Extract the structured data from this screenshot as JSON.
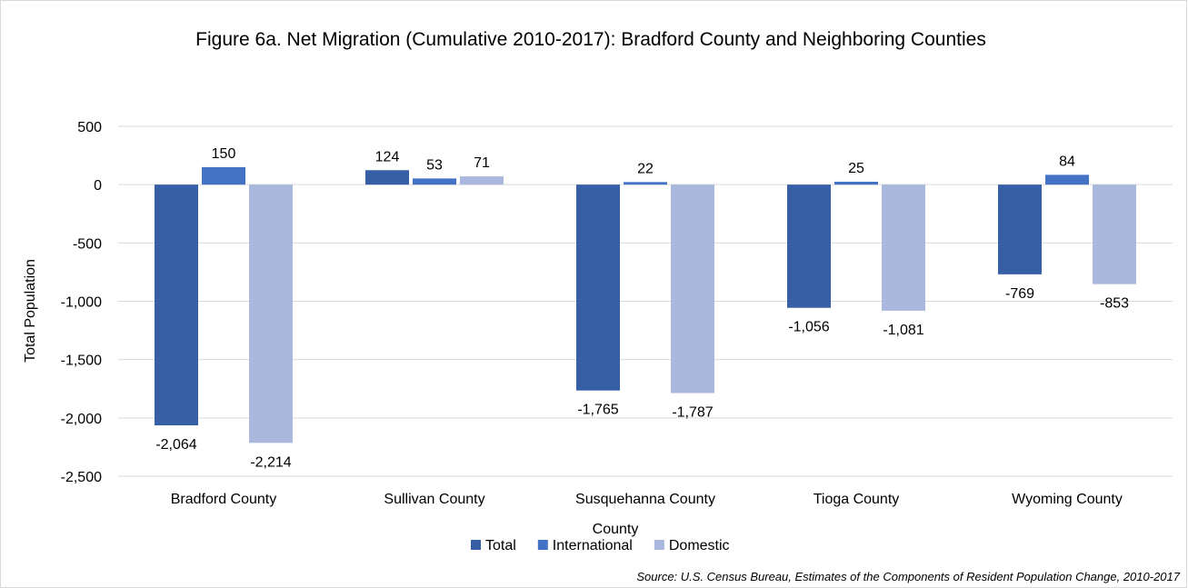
{
  "chart_data": {
    "type": "bar",
    "title": "Figure 6a. Net Migration (Cumulative 2010-2017): Bradford County and Neighboring Counties",
    "xlabel": "County",
    "ylabel": "Total Population",
    "ylim": [
      -2500,
      500
    ],
    "yticks": [
      500,
      0,
      -500,
      -1000,
      -1500,
      -2000,
      -2500
    ],
    "ytick_labels": [
      "500",
      "0",
      "-500",
      "-1,000",
      "-1,500",
      "-2,000",
      "-2,500"
    ],
    "grid": true,
    "legend_position": "bottom",
    "categories": [
      "Bradford County",
      "Sullivan County",
      "Susquehanna County",
      "Tioga County",
      "Wyoming County"
    ],
    "series": [
      {
        "name": "Total",
        "color": "#365fa5",
        "values": [
          -2064,
          124,
          -1765,
          -1056,
          -769
        ],
        "labels": [
          "-2,064",
          "124",
          "-1,765",
          "-1,056",
          "-769"
        ]
      },
      {
        "name": "International",
        "color": "#4472c4",
        "values": [
          150,
          53,
          22,
          25,
          84
        ],
        "labels": [
          "150",
          "53",
          "22",
          "25",
          "84"
        ]
      },
      {
        "name": "Domestic",
        "color": "#a9b8dc",
        "values": [
          -2214,
          71,
          -1787,
          -1081,
          -853
        ],
        "labels": [
          "-2,214",
          "71",
          "-1,787",
          "-1,081",
          "-853"
        ]
      }
    ],
    "source": "Source: U.S. Census Bureau, Estimates of the Components of Resident Population Change, 2010-2017"
  }
}
